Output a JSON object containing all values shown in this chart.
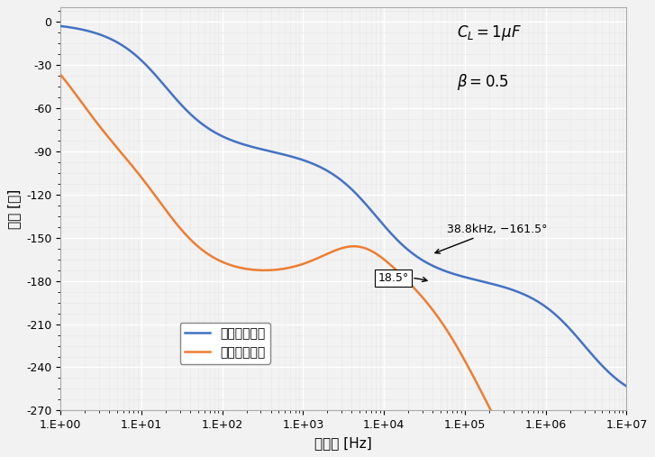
{
  "xlabel": "周波数 [Hz]",
  "ylabel": "位相 [度]",
  "legend_no_lead": "進み回路なし",
  "legend_with_lead": "進み回路あり",
  "annotation_point": "38.8kHz, −161.5°",
  "annotation_diff": "18.5°",
  "line_no_lead_color": "#4472C4",
  "line_with_lead_color": "#ED7D31",
  "bg_color": "#F2F2F2",
  "grid_major_color": "#FFFFFF",
  "grid_minor_color": "#E8E8E8",
  "yticks": [
    0,
    -30,
    -60,
    -90,
    -120,
    -150,
    -180,
    -210,
    -240,
    -270
  ],
  "xtick_vals": [
    1,
    10,
    100,
    1000,
    10000,
    100000,
    1000000,
    10000000
  ],
  "xtick_labels": [
    "1.E+00",
    "1.E+01",
    "1.E+02",
    "1.E+03",
    "1.E+04",
    "1.E+05",
    "1.E+06",
    "1.E+07"
  ],
  "ylim": [
    -270,
    10
  ],
  "figsize": [
    7.27,
    5.07
  ],
  "dpi": 100
}
